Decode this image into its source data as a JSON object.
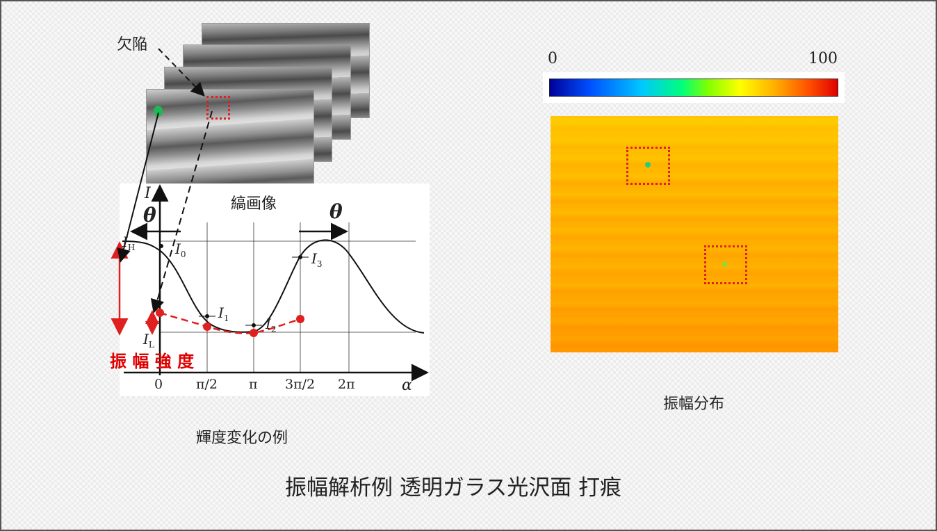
{
  "labels": {
    "defect": "欠陥",
    "fringe_image": "縞画像",
    "intensity_example": "輝度変化の例",
    "amplitude_label": "振 幅 強 度",
    "amplitude_distribution": "振幅分布",
    "caption": "振幅解析例 透明ガラス光沢面 打痕"
  },
  "colorbar": {
    "min_label": "0",
    "max_label": "100",
    "colors": [
      "#00009a",
      "#0050ff",
      "#00c8ff",
      "#00ff7a",
      "#ffff00",
      "#ff5000",
      "#e00000"
    ]
  },
  "plot": {
    "y_axis_label": "I",
    "x_axis_label": "α",
    "theta_label": "θ",
    "x_ticks": [
      "0",
      "π/2",
      "π",
      "3π/2",
      "2π"
    ],
    "level_labels": {
      "high": "I",
      "high_sub": "H",
      "low": "I",
      "low_sub": "L"
    },
    "point_labels": [
      {
        "main": "I",
        "sub": "0"
      },
      {
        "main": "I",
        "sub": "1"
      },
      {
        "main": "I",
        "sub": "2"
      },
      {
        "main": "I",
        "sub": "3"
      }
    ],
    "colors": {
      "curve": "#111111",
      "defect_curve": "#e02020",
      "arrow": "#e02020"
    }
  }
}
